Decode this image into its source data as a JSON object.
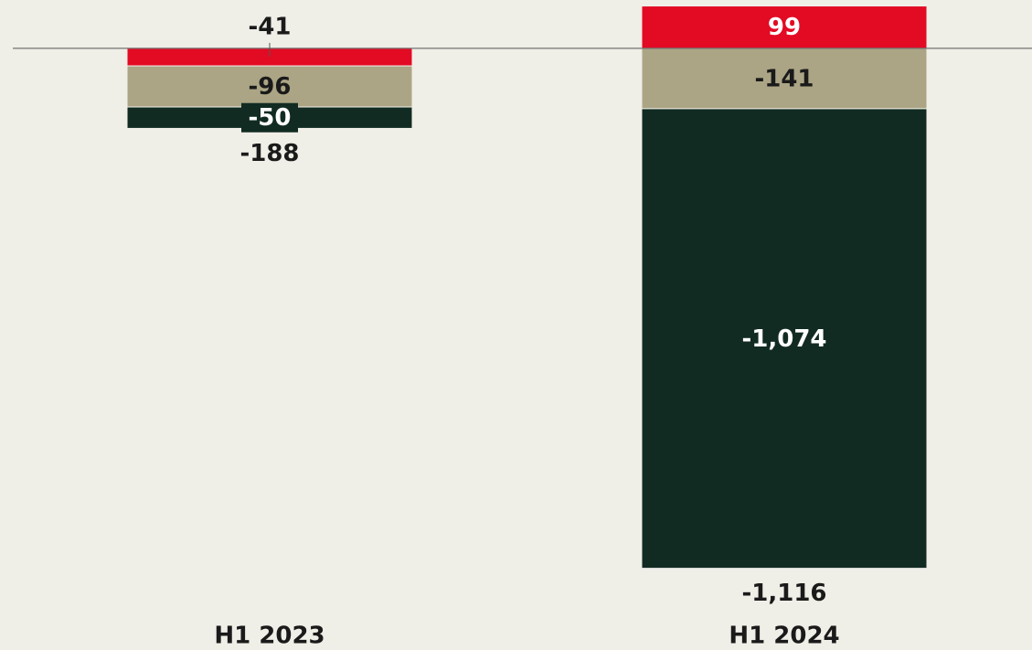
{
  "chart_data": {
    "type": "stacked-bar",
    "categories": [
      "H1 2023",
      "H1 2024"
    ],
    "series": [
      {
        "color": "#e30a23",
        "values": [
          -41,
          99
        ]
      },
      {
        "color": "#aba585",
        "values": [
          -96,
          -141
        ]
      },
      {
        "color": "#112b22",
        "values": [
          -50,
          -1074
        ],
        "value_labels": [
          "-50",
          "-1,074"
        ]
      }
    ],
    "totals": [
      -188,
      -1116
    ],
    "totals_labels": [
      "-188",
      "-1,116"
    ],
    "ylim": [
      -1250,
      113
    ]
  }
}
